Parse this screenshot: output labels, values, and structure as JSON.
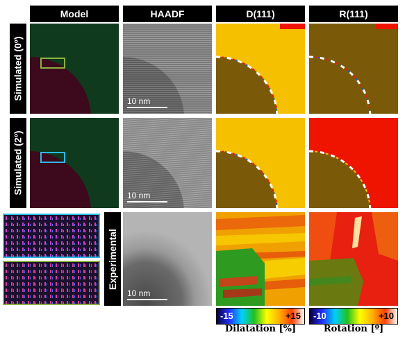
{
  "columns": [
    "Model",
    "HAADF",
    "D(111)",
    "R(111)"
  ],
  "rows": [
    "Simulated (0º)",
    "Simulated (2º)",
    "Experimental"
  ],
  "scale_bar": "10 nm",
  "colorbars": [
    {
      "min": "-15",
      "max": "+15",
      "label": "Dilatation [%]"
    },
    {
      "min": "-10",
      "max": "+10",
      "label": "Rotation [º]"
    }
  ],
  "colors": {
    "model_green": "#0f3a1e",
    "model_red": "#3c0a1c",
    "d_yellow": "#f5c000",
    "r_red": "#ee1400",
    "inclusion_brown": "#7a5a08",
    "box_green": "#8bb040",
    "box_cyan": "#30b8e8"
  }
}
